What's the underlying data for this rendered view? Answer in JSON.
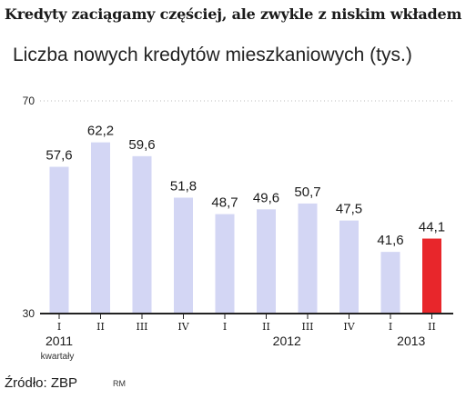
{
  "header": {
    "headline": "Kredyty zaciągamy częściej, ale zwykle z niskim wkładem",
    "subtitle": "Liczba nowych kredytów mieszkaniowych (tys.)"
  },
  "footer": {
    "source": "Źródło: ZBP",
    "author": "RM"
  },
  "colors": {
    "bar": "#d3d6f4",
    "bar_highlight": "#e8262b",
    "axis": "#222222",
    "grid": "#bbbbbb"
  },
  "chart_data": {
    "type": "bar",
    "title": "Liczba nowych kredytów mieszkaniowych (tys.)",
    "categories": [
      "I",
      "II",
      "III",
      "IV",
      "I",
      "II",
      "III",
      "IV",
      "I",
      "II"
    ],
    "values": [
      57.6,
      62.2,
      59.6,
      51.8,
      48.7,
      49.6,
      50.7,
      47.5,
      41.6,
      44.1
    ],
    "value_labels": [
      "57,6",
      "62,2",
      "59,6",
      "51,8",
      "48,7",
      "49,6",
      "50,7",
      "47,5",
      "41,6",
      "44,1"
    ],
    "highlight_index": 9,
    "ylim": [
      30,
      70
    ],
    "yticks": [
      {
        "value": 30,
        "label": "30"
      },
      {
        "value": 70,
        "label": "70"
      }
    ],
    "year_groups": [
      {
        "label": "2011",
        "sublabel": "kwartały",
        "first": 0,
        "last": 3
      },
      {
        "label": "2012",
        "sublabel": "",
        "first": 4,
        "last": 7
      },
      {
        "label": "2013",
        "sublabel": "",
        "first": 8,
        "last": 9
      }
    ]
  }
}
